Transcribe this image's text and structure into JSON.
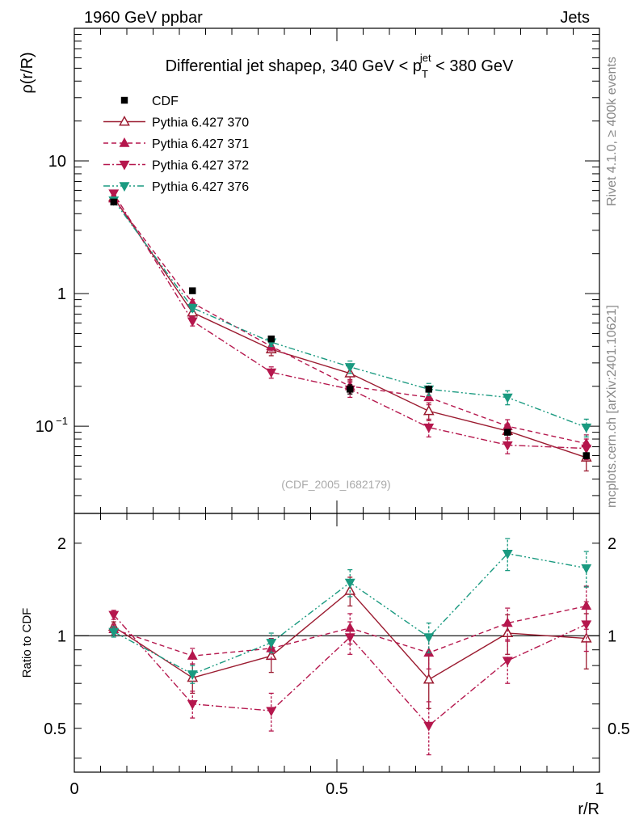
{
  "header": {
    "left_label": "1960 GeV ppbar",
    "right_label": "Jets",
    "side_label_top": "Rivet 4.1.0, ≥ 400k events",
    "side_label_bottom": "mcplots.cern.ch [arXiv:2401.10621]",
    "watermark": "(CDF_2005_I682179)"
  },
  "chart_data": [
    {
      "type": "line",
      "title": "Differential jet shapeρ, 340 GeV < p_T^jet < 380 GeV",
      "title_parts": {
        "pre": "Differential jet shapeρ, 340 GeV < p",
        "sub": "T",
        "sup": "jet",
        "post": " < 380 GeV"
      },
      "ylabel": "ρ(r/R)",
      "xlabel": "",
      "yscale": "log",
      "xlim": [
        0,
        1
      ],
      "ylim": [
        0.022,
        100
      ],
      "y_tick_labels": [
        {
          "value": 10,
          "label": "10"
        },
        {
          "value": 1,
          "label": "1"
        },
        {
          "value": 0.1,
          "label": "10",
          "sup": "−1"
        }
      ],
      "x": [
        0.075,
        0.225,
        0.375,
        0.525,
        0.675,
        0.825,
        0.975
      ],
      "series": [
        {
          "name": "CDF",
          "color": "#000000",
          "marker": "square",
          "line": "none",
          "values": [
            4.9,
            1.05,
            0.455,
            0.19,
            0.19,
            0.09,
            0.06
          ],
          "errors": [
            0.1,
            0.03,
            0.015,
            0.015,
            0.008,
            0.004,
            0.003
          ]
        },
        {
          "name": "Pythia 6.427 370",
          "color": "#9b1b30",
          "marker": "triangle-up-open",
          "line": "solid",
          "values": [
            5.3,
            0.72,
            0.38,
            0.25,
            0.13,
            0.092,
            0.058
          ],
          "errors": [
            0.2,
            0.06,
            0.04,
            0.03,
            0.02,
            0.012,
            0.012
          ]
        },
        {
          "name": "Pythia 6.427 371",
          "color": "#b5174d",
          "marker": "triangle-up",
          "line": "dashed",
          "values": [
            5.2,
            0.85,
            0.4,
            0.2,
            0.165,
            0.1,
            0.074
          ],
          "errors": [
            0.2,
            0.05,
            0.03,
            0.025,
            0.02,
            0.012,
            0.012
          ]
        },
        {
          "name": "Pythia 6.427 372",
          "color": "#b5174d",
          "marker": "triangle-down",
          "line": "dashdot",
          "values": [
            5.7,
            0.62,
            0.255,
            0.19,
            0.098,
            0.072,
            0.068
          ],
          "errors": [
            0.2,
            0.05,
            0.025,
            0.025,
            0.015,
            0.01,
            0.012
          ]
        },
        {
          "name": "Pythia 6.427 376",
          "color": "#1a9a80",
          "marker": "triangle-down",
          "line": "dashdotdot",
          "values": [
            5.05,
            0.78,
            0.43,
            0.28,
            0.19,
            0.165,
            0.098
          ],
          "errors": [
            0.2,
            0.05,
            0.03,
            0.03,
            0.02,
            0.02,
            0.015
          ]
        }
      ],
      "legend": "top-left"
    },
    {
      "type": "line",
      "title": "",
      "ylabel": "Ratio to CDF",
      "xlabel": "r/R",
      "yscale": "log",
      "xlim": [
        0,
        1
      ],
      "ylim": [
        0.36,
        2.5
      ],
      "x_tick_labels": [
        {
          "value": 0,
          "label": "0"
        },
        {
          "value": 0.5,
          "label": "0.5"
        },
        {
          "value": 1,
          "label": "1"
        }
      ],
      "y_tick_labels": [
        {
          "value": 2,
          "label": "2"
        },
        {
          "value": 1,
          "label": "1"
        },
        {
          "value": 0.5,
          "label": "0.5"
        }
      ],
      "reference_line": 1,
      "x": [
        0.075,
        0.225,
        0.375,
        0.525,
        0.675,
        0.825,
        0.975
      ],
      "series": [
        {
          "name": "Pythia 6.427 370",
          "values": [
            1.07,
            0.73,
            0.86,
            1.4,
            0.72,
            1.02,
            0.98
          ],
          "errors": [
            0.04,
            0.08,
            0.1,
            0.15,
            0.14,
            0.15,
            0.2
          ]
        },
        {
          "name": "Pythia 6.427 371",
          "values": [
            1.05,
            0.86,
            0.91,
            1.06,
            0.88,
            1.1,
            1.25
          ],
          "errors": [
            0.04,
            0.05,
            0.07,
            0.12,
            0.1,
            0.13,
            0.2
          ]
        },
        {
          "name": "Pythia 6.427 372",
          "values": [
            1.17,
            0.6,
            0.57,
            0.99,
            0.51,
            0.83,
            1.09
          ],
          "errors": [
            0.04,
            0.06,
            0.08,
            0.12,
            0.1,
            0.13,
            0.2
          ]
        },
        {
          "name": "Pythia 6.427 376",
          "values": [
            1.03,
            0.75,
            0.95,
            1.49,
            0.99,
            1.85,
            1.66
          ],
          "errors": [
            0.04,
            0.05,
            0.07,
            0.15,
            0.11,
            0.22,
            0.22
          ]
        }
      ]
    }
  ]
}
